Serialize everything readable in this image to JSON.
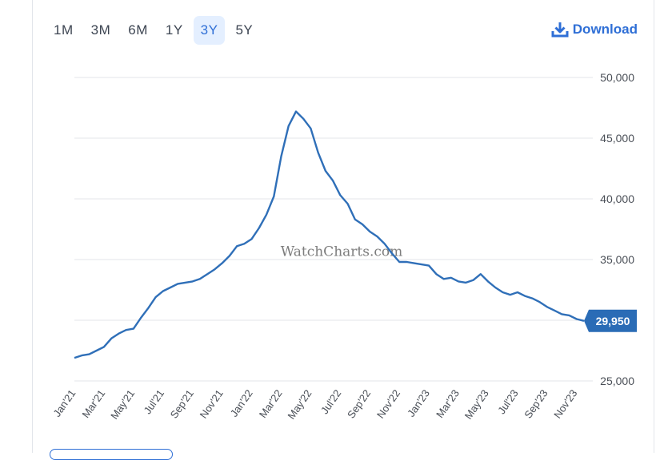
{
  "range_buttons": [
    {
      "label": "1M",
      "active": false
    },
    {
      "label": "3M",
      "active": false
    },
    {
      "label": "6M",
      "active": false
    },
    {
      "label": "1Y",
      "active": false
    },
    {
      "label": "3Y",
      "active": true
    },
    {
      "label": "5Y",
      "active": false
    }
  ],
  "download_label": "Download",
  "watermark": "WatchCharts.com",
  "current_value_label": "29,950",
  "colors": {
    "line": "#2f6fb8",
    "badge": "#2a6cb6",
    "accent": "#2f6fd6",
    "grid": "#e3e6ea"
  },
  "chart_data": {
    "type": "line",
    "title": "",
    "xlabel": "",
    "ylabel": "",
    "ylim": [
      25000,
      50000
    ],
    "y_ticks": [
      25000,
      30000,
      35000,
      40000,
      45000,
      50000
    ],
    "y_tick_labels": [
      "25,000",
      "30,000",
      "35,000",
      "40,000",
      "45,000",
      "50,000"
    ],
    "x_tick_labels": [
      "Jan'21",
      "Mar'21",
      "May'21",
      "Jul'21",
      "Sep'21",
      "Nov'21",
      "Jan'22",
      "Mar'22",
      "May'22",
      "Jul'22",
      "Sep'22",
      "Nov'22",
      "Jan'23",
      "Mar'23",
      "May'23",
      "Jul'23",
      "Sep'23",
      "Nov'23"
    ],
    "grid": true,
    "current_value": 29950,
    "series": [
      {
        "values": [
          26900,
          27100,
          27200,
          27500,
          27800,
          28500,
          28900,
          29200,
          29300,
          30200,
          31000,
          31900,
          32400,
          32700,
          33000,
          33100,
          33200,
          33400,
          33800,
          34200,
          34700,
          35300,
          36100,
          36300,
          36700,
          37600,
          38700,
          40200,
          43500,
          46000,
          47200,
          46600,
          45800,
          43800,
          42300,
          41500,
          40300,
          39600,
          38300,
          37900,
          37300,
          36900,
          36300,
          35500,
          34800,
          34800,
          34700,
          34600,
          34500,
          33800,
          33400,
          33500,
          33200,
          33100,
          33300,
          33800,
          33200,
          32700,
          32300,
          32100,
          32300,
          32000,
          31800,
          31500,
          31100,
          30800,
          30500,
          30400,
          30100,
          29950
        ]
      }
    ]
  }
}
